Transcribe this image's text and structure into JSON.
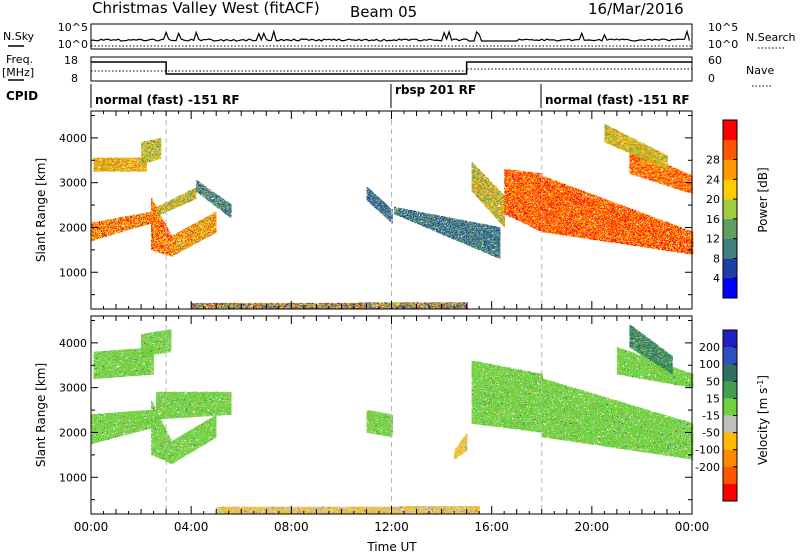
{
  "header": {
    "station": "Christmas Valley West (fitACF)",
    "beam": "Beam 05",
    "date": "16/Mar/2016"
  },
  "top_panel": {
    "nsky_label": "N.Sky",
    "nsky_ticks": [
      "10^5",
      "10^0"
    ],
    "nsearch_label": "N.Search",
    "freq_label": "Freq.",
    "freq_unit": "[MHz]",
    "freq_ticks": [
      "18",
      "8"
    ],
    "nave_label": "Nave",
    "nave_ticks": [
      "60",
      "0"
    ],
    "cpid_label": "CPID",
    "cpid_segments": [
      {
        "start_h": 0,
        "end_h": 12,
        "label": "normal (fast) -151 RF"
      },
      {
        "start_h": 12,
        "end_h": 18,
        "label": "rbsp 201 RF"
      },
      {
        "start_h": 18,
        "end_h": 24,
        "label": "normal (fast) -151 RF"
      }
    ]
  },
  "colors": {
    "power_scale": [
      "#0000ff",
      "#1f3ea6",
      "#3f7f7f",
      "#5fa060",
      "#a0cc40",
      "#ffcc00",
      "#ff9900",
      "#ff5500",
      "#ff0000"
    ],
    "velocity_scale": [
      "#2020c0",
      "#3050c0",
      "#307060",
      "#40a050",
      "#70d040",
      "#c0c0b8",
      "#ffbb00",
      "#ff8800",
      "#ff5500",
      "#ff0000"
    ]
  },
  "chart_data": [
    {
      "type": "heatmap",
      "name_of_quantity": "power",
      "ylabel": "Slant Range [km]",
      "xlim_hours": [
        0,
        24
      ],
      "ylim_km": [
        180,
        4600
      ],
      "yticks": [
        1000,
        2000,
        3000,
        4000
      ],
      "colorbar": {
        "label": "Power [dB]",
        "ticks": [
          "4",
          "8",
          "12",
          "16",
          "20",
          "24",
          "28"
        ],
        "range": [
          0,
          32
        ]
      },
      "regions": [
        {
          "t": [
            0.0,
            2.4
          ],
          "r0": [
            1700,
            2100
          ],
          "r1": [
            2100,
            2350
          ],
          "v": [
            16,
            32
          ]
        },
        {
          "t": [
            2.4,
            3.2
          ],
          "r0": [
            1500,
            1350
          ],
          "r1": [
            2650,
            1800
          ],
          "v": [
            18,
            32
          ]
        },
        {
          "t": [
            3.2,
            5.0
          ],
          "r0": [
            1350,
            1900
          ],
          "r1": [
            1800,
            2350
          ],
          "v": [
            14,
            30
          ]
        },
        {
          "t": [
            2.6,
            4.2
          ],
          "r0": [
            2250,
            2650
          ],
          "r1": [
            2450,
            2900
          ],
          "v": [
            10,
            26
          ]
        },
        {
          "t": [
            4.2,
            5.6
          ],
          "r0": [
            2800,
            2200
          ],
          "r1": [
            3050,
            2500
          ],
          "v": [
            4,
            16
          ]
        },
        {
          "t": [
            0.1,
            2.2
          ],
          "r0": [
            3250,
            3250
          ],
          "r1": [
            3550,
            3550
          ],
          "v": [
            14,
            28
          ]
        },
        {
          "t": [
            2.0,
            2.8
          ],
          "r0": [
            3400,
            3550
          ],
          "r1": [
            3900,
            4000
          ],
          "v": [
            10,
            24
          ]
        },
        {
          "t": [
            11.0,
            12.0
          ],
          "r0": [
            2600,
            2100
          ],
          "r1": [
            2900,
            2400
          ],
          "v": [
            4,
            12
          ]
        },
        {
          "t": [
            12.1,
            16.3
          ],
          "r0": [
            2300,
            1300
          ],
          "r1": [
            2450,
            2000
          ],
          "v": [
            4,
            14
          ]
        },
        {
          "t": [
            15.2,
            16.5
          ],
          "r0": [
            2800,
            2000
          ],
          "r1": [
            3450,
            2700
          ],
          "v": [
            10,
            26
          ]
        },
        {
          "t": [
            16.5,
            18.0
          ],
          "r0": [
            2300,
            1900
          ],
          "r1": [
            3300,
            3200
          ],
          "v": [
            20,
            32
          ]
        },
        {
          "t": [
            18.0,
            24.0
          ],
          "r0": [
            1900,
            1400
          ],
          "r1": [
            3150,
            1900
          ],
          "v": [
            20,
            32
          ]
        },
        {
          "t": [
            21.5,
            24.0
          ],
          "r0": [
            3200,
            2750
          ],
          "r1": [
            3750,
            3150
          ],
          "v": [
            18,
            32
          ]
        },
        {
          "t": [
            20.5,
            23.0
          ],
          "r0": [
            3900,
            3300
          ],
          "r1": [
            4300,
            3600
          ],
          "v": [
            12,
            26
          ]
        },
        {
          "t": [
            4.0,
            15.0
          ],
          "r0": [
            190,
            190
          ],
          "r1": [
            310,
            320
          ],
          "v": [
            2,
            30
          ]
        }
      ]
    },
    {
      "type": "heatmap",
      "name_of_quantity": "velocity",
      "xlabel": "Time UT",
      "ylabel": "Slant Range [km]",
      "xlim_hours": [
        0,
        24
      ],
      "xticks": [
        "00:00",
        "04:00",
        "08:00",
        "12:00",
        "16:00",
        "20:00",
        "00:00"
      ],
      "ylim_km": [
        180,
        4600
      ],
      "yticks": [
        1000,
        2000,
        3000,
        4000
      ],
      "colorbar": {
        "label": "Velocity [m s^-1]",
        "ticks": [
          "200",
          "100",
          "50",
          "15",
          "-15",
          "-50",
          "-100",
          "-200"
        ],
        "range": [
          -250,
          250
        ]
      },
      "regions": [
        {
          "t": [
            0.0,
            2.4
          ],
          "r0": [
            1750,
            2100
          ],
          "r1": [
            2400,
            2500
          ],
          "v": [
            -10,
            10
          ]
        },
        {
          "t": [
            2.4,
            3.2
          ],
          "r0": [
            1500,
            1300
          ],
          "r1": [
            2700,
            1800
          ],
          "v": [
            -10,
            10
          ]
        },
        {
          "t": [
            3.2,
            5.0
          ],
          "r0": [
            1300,
            1900
          ],
          "r1": [
            1800,
            2400
          ],
          "v": [
            -10,
            10
          ]
        },
        {
          "t": [
            2.6,
            5.6
          ],
          "r0": [
            2300,
            2400
          ],
          "r1": [
            2900,
            2900
          ],
          "v": [
            -12,
            12
          ]
        },
        {
          "t": [
            0.1,
            2.5
          ],
          "r0": [
            3200,
            3300
          ],
          "r1": [
            3800,
            3900
          ],
          "v": [
            -12,
            12
          ]
        },
        {
          "t": [
            2.0,
            3.2
          ],
          "r0": [
            3700,
            3800
          ],
          "r1": [
            4200,
            4300
          ],
          "v": [
            -10,
            10
          ]
        },
        {
          "t": [
            11.0,
            12.0
          ],
          "r0": [
            2000,
            1900
          ],
          "r1": [
            2500,
            2400
          ],
          "v": [
            -10,
            10
          ]
        },
        {
          "t": [
            14.5,
            15.0
          ],
          "r0": [
            1400,
            1600
          ],
          "r1": [
            1600,
            2000
          ],
          "v": [
            -80,
            -40
          ]
        },
        {
          "t": [
            15.2,
            18.0
          ],
          "r0": [
            2200,
            2000
          ],
          "r1": [
            3600,
            3300
          ],
          "v": [
            -12,
            12
          ]
        },
        {
          "t": [
            18.0,
            24.0
          ],
          "r0": [
            1900,
            1400
          ],
          "r1": [
            3200,
            2200
          ],
          "v": [
            -12,
            12
          ]
        },
        {
          "t": [
            21.0,
            24.0
          ],
          "r0": [
            3300,
            3000
          ],
          "r1": [
            3900,
            3300
          ],
          "v": [
            -12,
            12
          ]
        },
        {
          "t": [
            21.5,
            23.2
          ],
          "r0": [
            3900,
            3300
          ],
          "r1": [
            4400,
            3700
          ],
          "v": [
            30,
            70
          ]
        },
        {
          "t": [
            5.0,
            15.5
          ],
          "r0": [
            190,
            190
          ],
          "r1": [
            330,
            350
          ],
          "v": [
            -70,
            -30
          ]
        }
      ]
    }
  ]
}
